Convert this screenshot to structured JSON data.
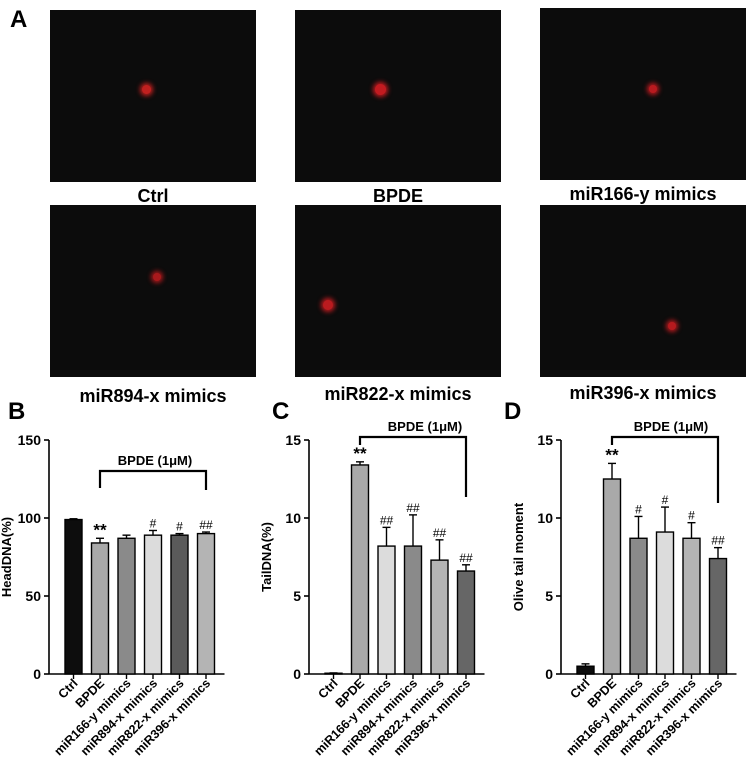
{
  "figure": {
    "panel_a_label": "A",
    "micrographs": [
      {
        "caption": "Ctrl",
        "cell_color": "#c0201f"
      },
      {
        "caption": "BPDE",
        "cell_color": "#c21b20"
      },
      {
        "caption": "miR166-y mimics",
        "cell_color": "#b81a1f"
      },
      {
        "caption": "miR894-x mimics",
        "cell_color": "#a8191c"
      },
      {
        "caption": "miR822-x mimics",
        "cell_color": "#b91b1f"
      },
      {
        "caption": "miR396-x mimics",
        "cell_color": "#b51a1e"
      }
    ]
  },
  "chart_data": [
    {
      "panel": "B",
      "type": "bar",
      "title": "",
      "ylabel": "HeadDNA(%)",
      "ylim": [
        0,
        150
      ],
      "yticks": [
        0,
        50,
        100,
        150
      ],
      "categories": [
        "Ctrl",
        "BPDE",
        "miR166-y mimics",
        "miR894-x mimics",
        "miR822-x mimics",
        "miR396-x mimics"
      ],
      "values": [
        99,
        84,
        87,
        89,
        89,
        90
      ],
      "errors": [
        0.5,
        3,
        2,
        3,
        1,
        1
      ],
      "annotations": [
        "",
        "**",
        "",
        "#",
        "#",
        "##"
      ],
      "bar_colors": [
        "#0d0d0d",
        "#a9a9a9",
        "#8a8a8a",
        "#dcdcdc",
        "#5a5a5a",
        "#b4b4b4"
      ],
      "bracket_label": "BPDE (1μM)",
      "grid": false
    },
    {
      "panel": "C",
      "type": "bar",
      "title": "",
      "ylabel": "TailDNA(%)",
      "ylim": [
        0,
        15
      ],
      "yticks": [
        0,
        5,
        10,
        15
      ],
      "categories": [
        "Ctrl",
        "BPDE",
        "miR166-y mimics",
        "miR894-x mimics",
        "miR822-x mimics",
        "miR396-x mimics"
      ],
      "values": [
        0.05,
        13.4,
        8.2,
        8.2,
        7.3,
        6.6
      ],
      "errors": [
        0.02,
        0.2,
        1.2,
        2.0,
        1.3,
        0.4
      ],
      "annotations": [
        "",
        "**",
        "##",
        "##",
        "##",
        "##"
      ],
      "bar_colors": [
        "#0d0d0d",
        "#a9a9a9",
        "#dcdcdc",
        "#8a8a8a",
        "#b4b4b4",
        "#666666"
      ],
      "bracket_label": "BPDE (1μM)",
      "grid": false
    },
    {
      "panel": "D",
      "type": "bar",
      "title": "",
      "ylabel": "Olive tail moment",
      "ylim": [
        0,
        15
      ],
      "yticks": [
        0,
        5,
        10,
        15
      ],
      "categories": [
        "Ctrl",
        "BPDE",
        "miR166-y mimics",
        "miR894-x mimics",
        "miR822-x mimics",
        "miR396-x mimics"
      ],
      "values": [
        0.5,
        12.5,
        8.7,
        9.1,
        8.7,
        7.4
      ],
      "errors": [
        0.15,
        1.0,
        1.4,
        1.6,
        1.0,
        0.7
      ],
      "annotations": [
        "",
        "**",
        "#",
        "#",
        "#",
        "##"
      ],
      "bar_colors": [
        "#0d0d0d",
        "#a9a9a9",
        "#8a8a8a",
        "#dcdcdc",
        "#b4b4b4",
        "#666666"
      ],
      "bracket_label": "BPDE (1μM)",
      "grid": false
    }
  ]
}
